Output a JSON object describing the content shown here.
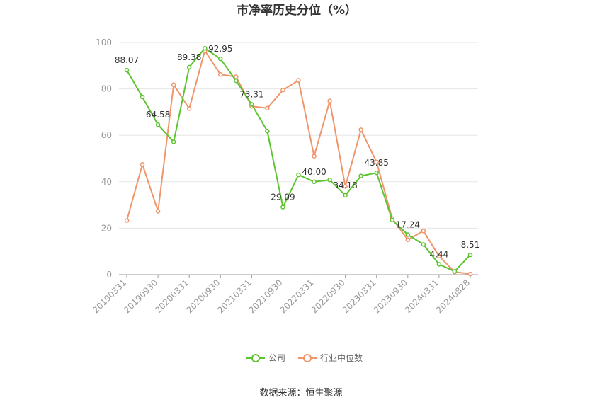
{
  "chart_data": {
    "type": "line",
    "title": "市净率历史分位（%）",
    "source": "数据来源：恒生聚源",
    "ylim": [
      0,
      100
    ],
    "yticks": [
      0,
      20,
      40,
      60,
      80,
      100
    ],
    "x": [
      "20190331",
      "20190630",
      "20190930",
      "20191231",
      "20200331",
      "20200630",
      "20200930",
      "20201231",
      "20210331",
      "20210630",
      "20210930",
      "20211231",
      "20220331",
      "20220630",
      "20220930",
      "20221231",
      "20230331",
      "20230630",
      "20230930",
      "20231231",
      "20240331",
      "20240630",
      "20240828"
    ],
    "x_tick_labels": [
      "20190331",
      "20190930",
      "20200331",
      "20200930",
      "20210331",
      "20210930",
      "20220331",
      "20220930",
      "20230331",
      "20230930",
      "20240331",
      "20240828"
    ],
    "grid": true,
    "legend_position": "bottom",
    "series": [
      {
        "name": "公司",
        "color": "#5cc42e",
        "values": [
          88.07,
          76.5,
          64.58,
          57.2,
          89.38,
          97.5,
          92.95,
          83.5,
          73.31,
          61.8,
          29.09,
          43.0,
          40.0,
          40.8,
          34.18,
          42.5,
          43.85,
          23.5,
          17.24,
          13.0,
          4.44,
          1.4,
          8.51
        ],
        "data_labels": {
          "0": "88.07",
          "2": "64.58",
          "4": "89.38",
          "6": "92.95",
          "8": "73.31",
          "10": "29.09",
          "12": "40.00",
          "14": "34.18",
          "16": "43.85",
          "18": "17.24",
          "20": "4.44",
          "22": "8.51"
        }
      },
      {
        "name": "行业中位数",
        "color": "#f0956a",
        "values": [
          23.3,
          47.5,
          27.3,
          81.8,
          71.5,
          96.5,
          86.2,
          85.2,
          72.5,
          71.7,
          79.5,
          83.7,
          51.0,
          74.8,
          38.0,
          62.4,
          48.5,
          24.2,
          15.0,
          18.8,
          8.0,
          1.2,
          0.3
        ]
      }
    ]
  }
}
